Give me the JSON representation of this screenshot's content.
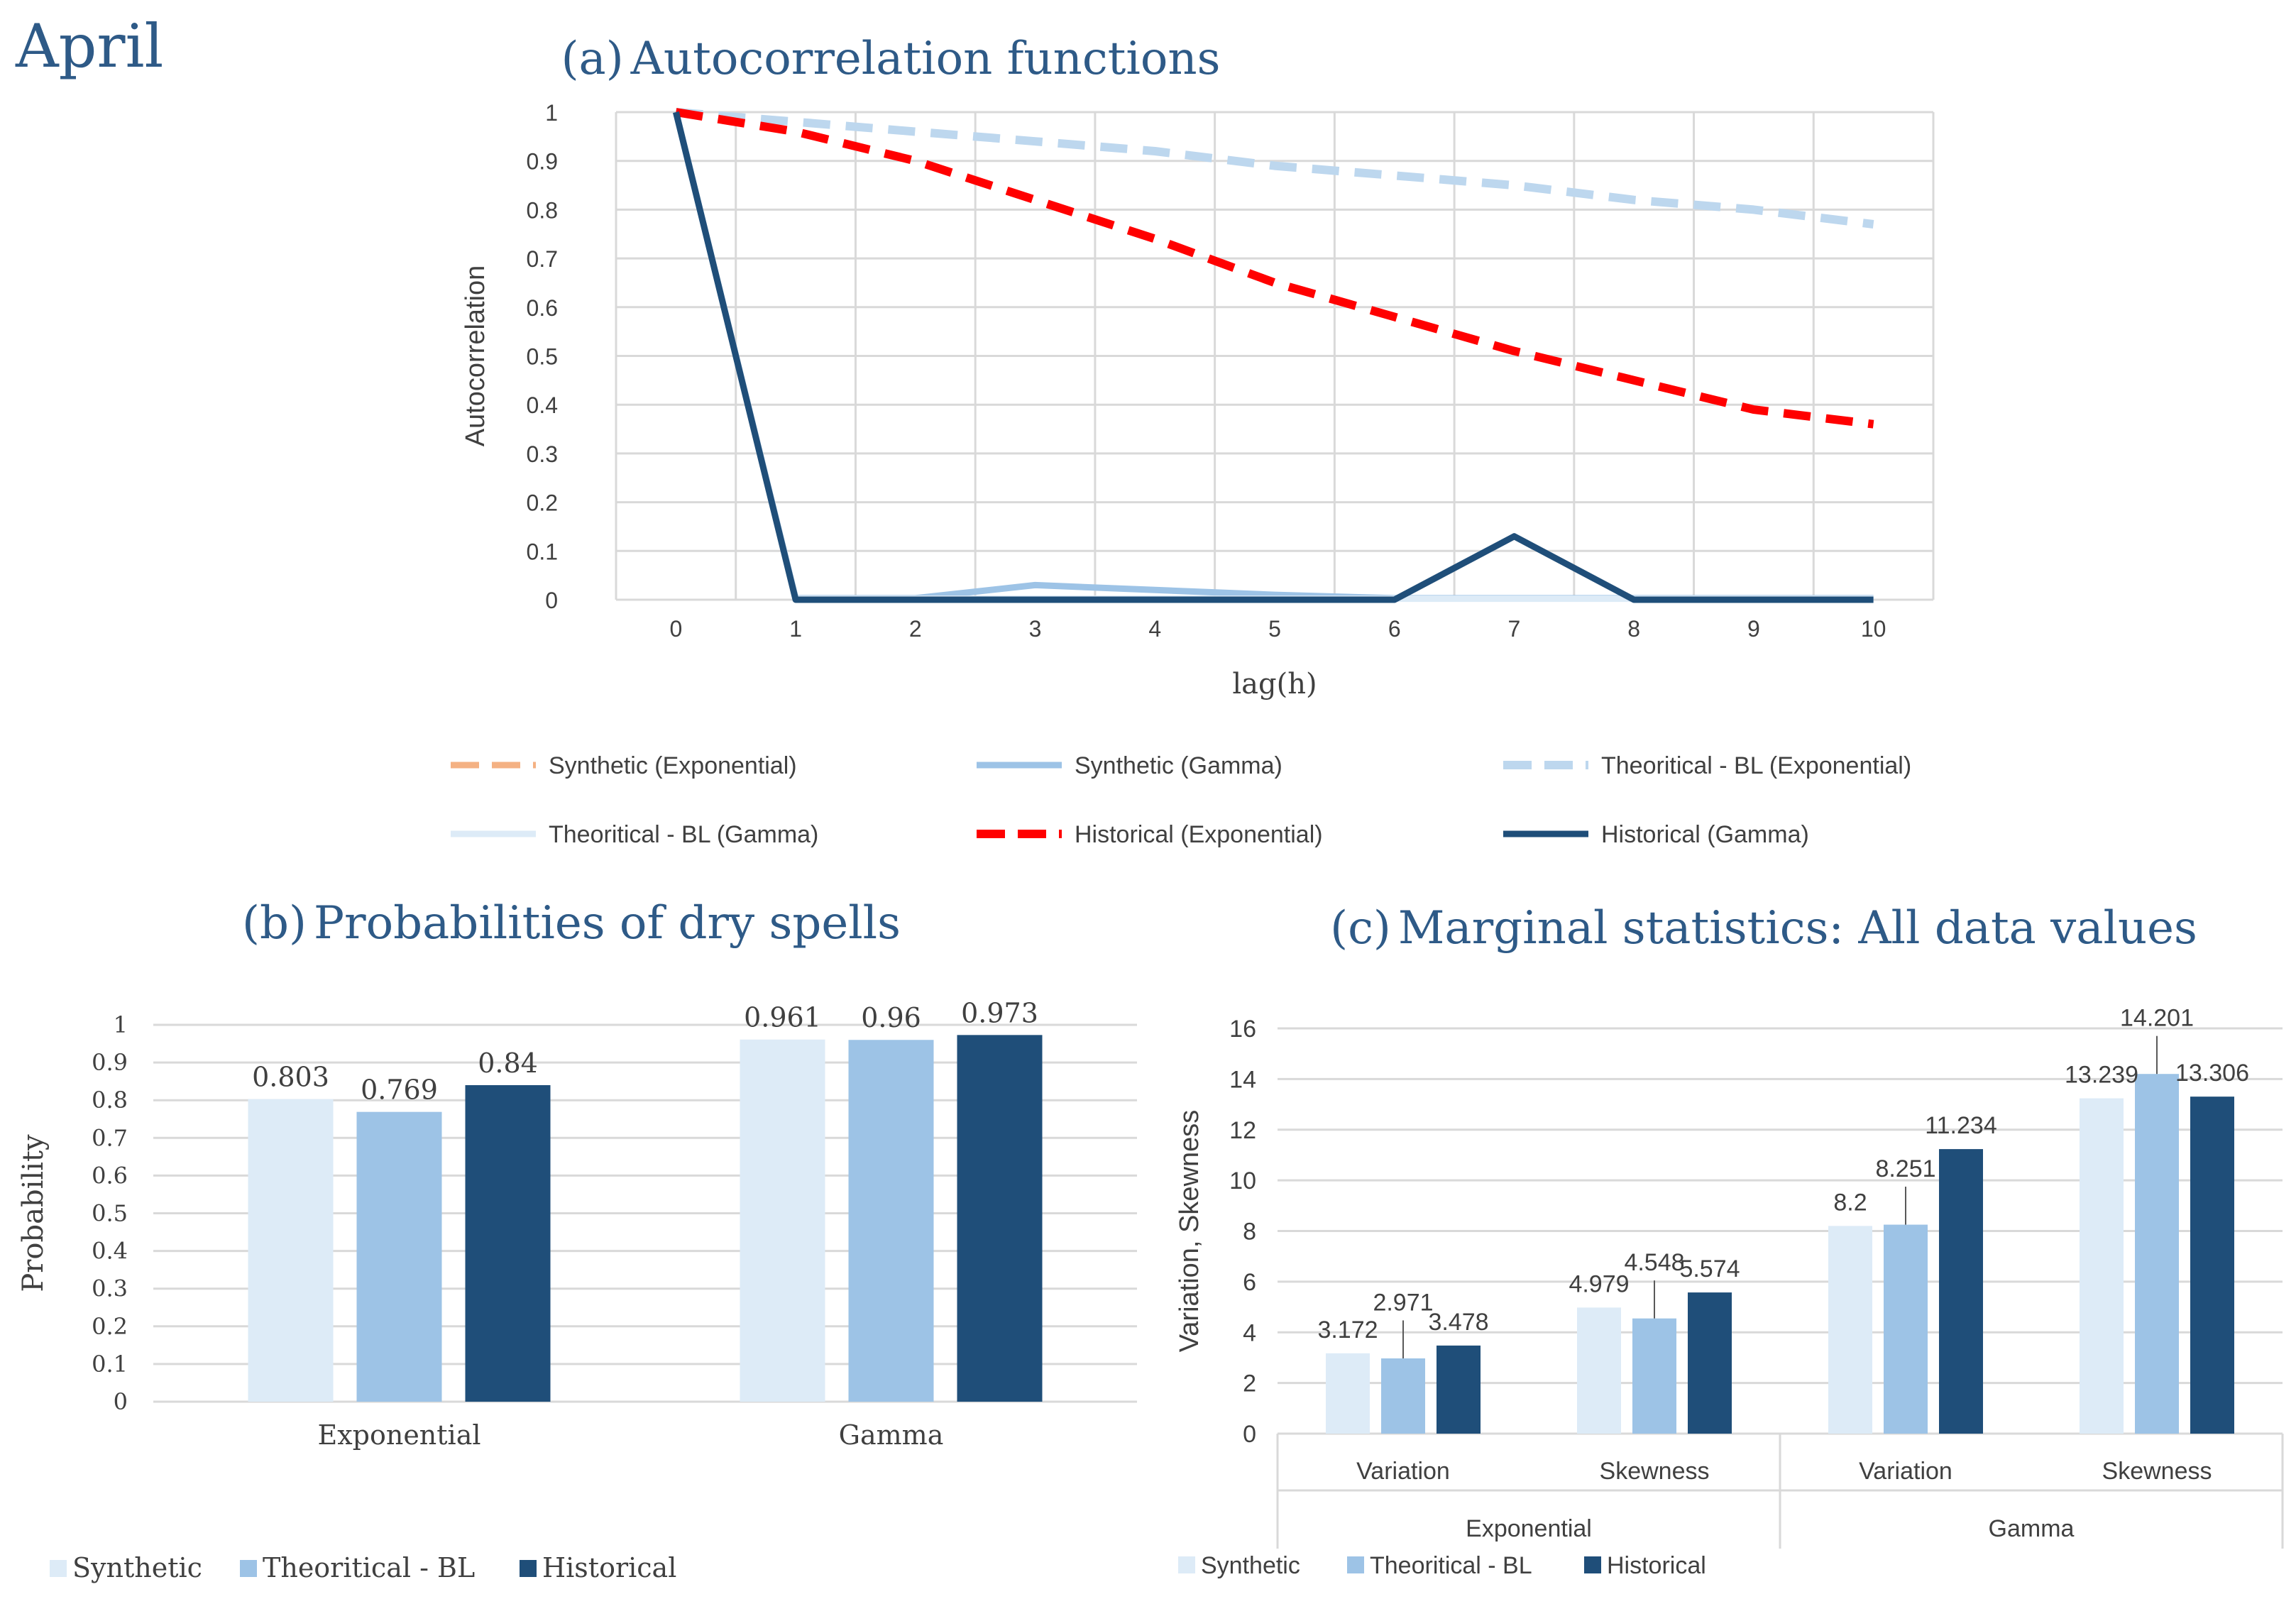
{
  "page": {
    "month": "April"
  },
  "colors": {
    "synthetic_exp": "#f4b183",
    "synthetic_gamma": "#9dc3e6",
    "theo_exp": "#bdd7ee",
    "theo_gamma": "#ddebf7",
    "hist_exp": "#ff0000",
    "hist_gamma": "#1f4e79",
    "bar_synthetic": "#ddebf7",
    "bar_theoretical": "#9dc3e6",
    "bar_historical": "#1f4e79",
    "title": "#2e5a87",
    "grid": "#d9d9d9",
    "text": "#404040"
  },
  "chart_data": [
    {
      "id": "a",
      "type": "line",
      "title_prefix": "(a)",
      "title": "Autocorrelation functions",
      "xlabel": "lag(h)",
      "ylabel": "Autocorrelation",
      "x": [
        0,
        1,
        2,
        3,
        4,
        5,
        6,
        7,
        8,
        9,
        10
      ],
      "ylim": [
        0,
        1
      ],
      "yticks": [
        0,
        0.1,
        0.2,
        0.3,
        0.4,
        0.5,
        0.6,
        0.7,
        0.8,
        0.9,
        1
      ],
      "ytick_labels": [
        "0",
        "0.1",
        "0.2",
        "0.3",
        "0.4",
        "0.5",
        "0.6",
        "0.7",
        "0.8",
        "0.9",
        "1"
      ],
      "series": [
        {
          "key": "synthetic_exp",
          "name": "Synthetic (Exponential)",
          "dash": true,
          "values": [
            1,
            0.96,
            0.9,
            0.82,
            0.74,
            0.65,
            0.58,
            0.51,
            0.45,
            0.39,
            0.36
          ]
        },
        {
          "key": "synthetic_gamma",
          "name": "Synthetic (Gamma)",
          "dash": false,
          "values": [
            1,
            0.003,
            0.003,
            0.03,
            0.02,
            0.01,
            0.003,
            0.003,
            0.003,
            0.003,
            0.003
          ]
        },
        {
          "key": "theo_exp",
          "name": "Theoritical - BL (Exponential)",
          "dash": true,
          "values": [
            1,
            0.98,
            0.96,
            0.94,
            0.92,
            0.89,
            0.87,
            0.85,
            0.82,
            0.8,
            0.77
          ]
        },
        {
          "key": "theo_gamma",
          "name": "Theoritical - BL (Gamma)",
          "dash": false,
          "values": [
            1,
            0.002,
            0.002,
            0.002,
            0.002,
            0.002,
            0.002,
            0.002,
            0.002,
            0.002,
            0.002
          ]
        },
        {
          "key": "hist_exp",
          "name": "Historical (Exponential)",
          "dash": true,
          "values": [
            1,
            0.96,
            0.9,
            0.82,
            0.74,
            0.65,
            0.58,
            0.51,
            0.45,
            0.39,
            0.36
          ]
        },
        {
          "key": "hist_gamma",
          "name": "Historical (Gamma)",
          "dash": false,
          "values": [
            1,
            0,
            0,
            0,
            0,
            0,
            0,
            0.13,
            0,
            0,
            0
          ]
        }
      ]
    },
    {
      "id": "b",
      "type": "bar",
      "title_prefix": "(b)",
      "title": "Probabilities of dry spells",
      "xlabel": "",
      "ylabel": "Probability",
      "categories": [
        "Exponential",
        "Gamma"
      ],
      "ylim": [
        0,
        1
      ],
      "yticks": [
        0,
        0.1,
        0.2,
        0.3,
        0.4,
        0.5,
        0.6,
        0.7,
        0.8,
        0.9,
        1
      ],
      "ytick_labels": [
        "0",
        "0.1",
        "0.2",
        "0.3",
        "0.4",
        "0.5",
        "0.6",
        "0.7",
        "0.8",
        "0.9",
        "1"
      ],
      "series": [
        {
          "key": "bar_synthetic",
          "name": "Synthetic",
          "values": [
            0.803,
            0.961
          ],
          "labels": [
            "0.803",
            "0.961"
          ]
        },
        {
          "key": "bar_theoretical",
          "name": "Theoritical - BL",
          "values": [
            0.769,
            0.96
          ],
          "labels": [
            "0.769",
            "0.96"
          ]
        },
        {
          "key": "bar_historical",
          "name": "Historical",
          "values": [
            0.84,
            0.973
          ],
          "labels": [
            "0.84",
            "0.973"
          ]
        }
      ]
    },
    {
      "id": "c",
      "type": "bar",
      "title_prefix": "(c)",
      "title": "Marginal statistics: All data values",
      "xlabel": "",
      "ylabel": "Variation, Skewness",
      "categories": [
        "Variation",
        "Skewness",
        "Variation",
        "Skewness"
      ],
      "groups": [
        {
          "label": "Exponential",
          "span": [
            0,
            1
          ]
        },
        {
          "label": "Gamma",
          "span": [
            2,
            3
          ]
        }
      ],
      "ylim": [
        0,
        16
      ],
      "yticks": [
        0,
        2,
        4,
        6,
        8,
        10,
        12,
        14,
        16
      ],
      "ytick_labels": [
        "0",
        "2",
        "4",
        "6",
        "8",
        "10",
        "12",
        "14",
        "16"
      ],
      "series": [
        {
          "key": "bar_synthetic",
          "name": "Synthetic",
          "values": [
            3.172,
            4.979,
            8.2,
            13.239
          ],
          "labels": [
            "3.172",
            "4.979",
            "8.2",
            "13.239"
          ]
        },
        {
          "key": "bar_theoretical",
          "name": "Theoritical - BL",
          "values": [
            2.971,
            4.548,
            8.251,
            14.201
          ],
          "labels": [
            "2.971",
            "4.548",
            "8.251",
            "14.201"
          ]
        },
        {
          "key": "bar_historical",
          "name": "Historical",
          "values": [
            3.478,
            5.574,
            11.234,
            13.306
          ],
          "labels": [
            "3.478",
            "5.574",
            "11.234",
            "13.306"
          ]
        }
      ]
    }
  ]
}
